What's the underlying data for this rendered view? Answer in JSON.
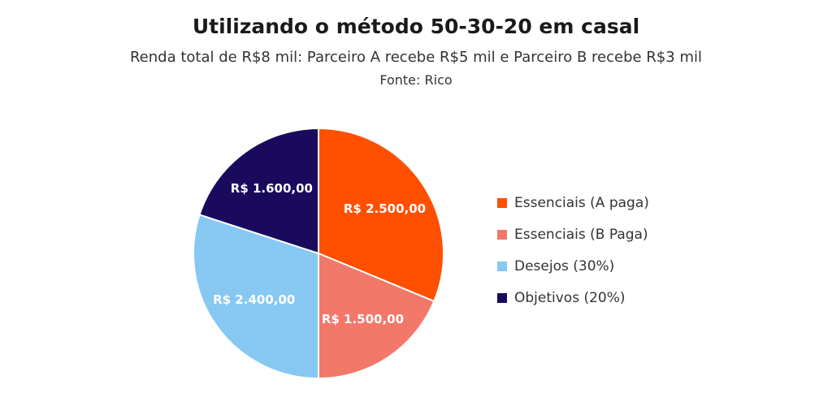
{
  "chart_data": {
    "type": "pie",
    "title": "Utilizando o método 50-30-20 em casal",
    "subtitle": "Renda total de R$8 mil: Parceiro A recebe R$5 mil e Parceiro B recebe R$3 mil",
    "source": "Fonte: Rico",
    "legend_position": "right",
    "slices": [
      {
        "name": "Essenciais (A paga)",
        "value": 2500,
        "label": "R$ 2.500,00",
        "color": "#FF5000"
      },
      {
        "name": "Essenciais (B Paga)",
        "value": 1500,
        "label": "R$ 1.500,00",
        "color": "#F2786A"
      },
      {
        "name": "Desejos (30%)",
        "value": 2400,
        "label": "R$ 2.400,00",
        "color": "#87C8F2"
      },
      {
        "name": "Objetivos (20%)",
        "value": 1600,
        "label": "R$ 1.600,00",
        "color": "#1A0A5E"
      }
    ]
  }
}
